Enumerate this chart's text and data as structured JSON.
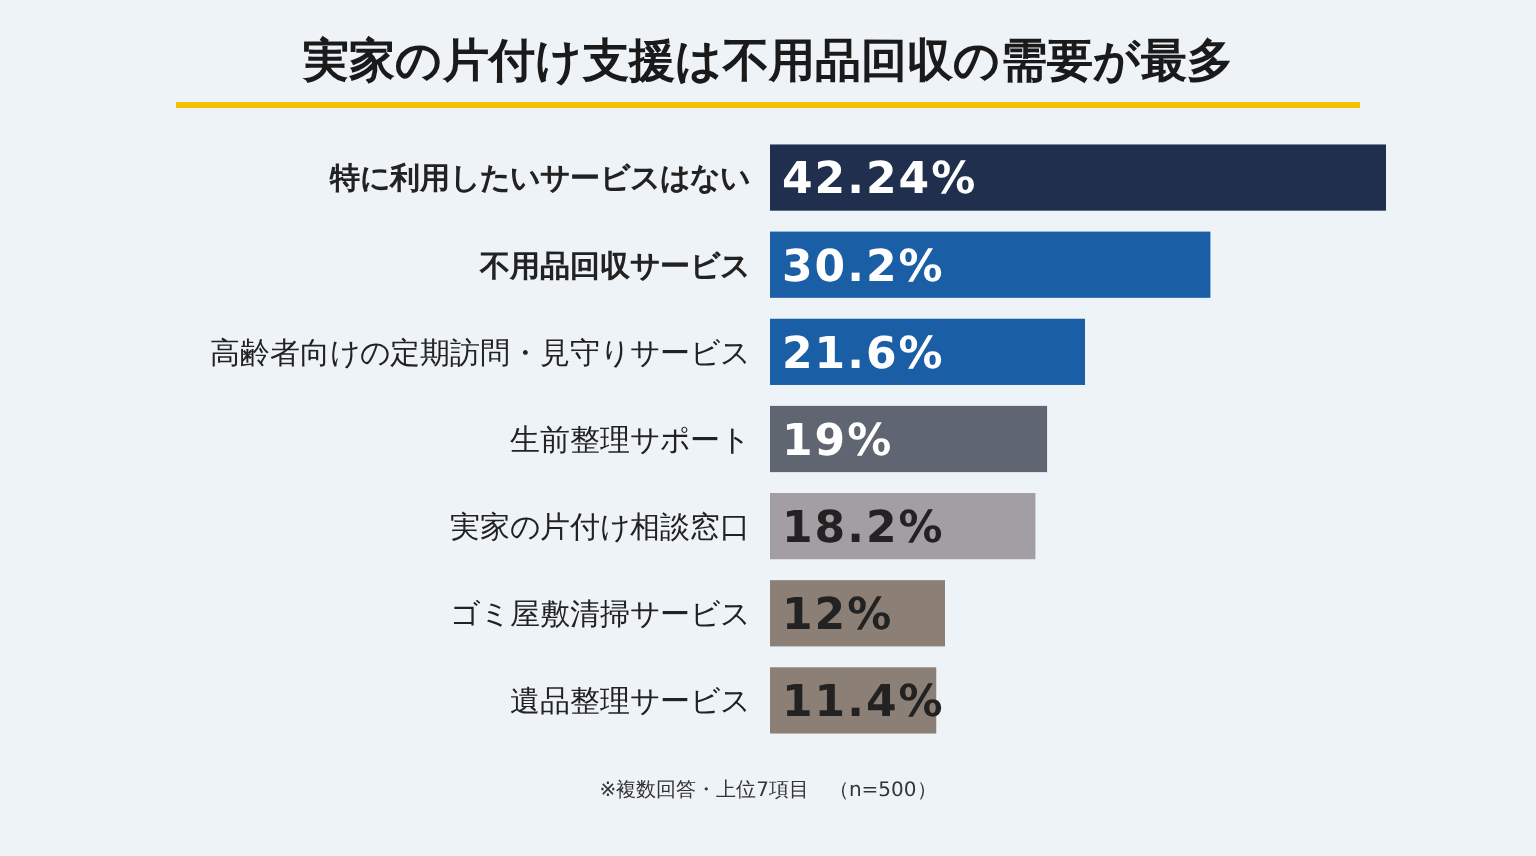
{
  "chart_data": {
    "type": "bar",
    "orientation": "horizontal",
    "title": "実家の片付け支援は不用品回収の需要が最多",
    "categories": [
      "特に利用したいサービスはない",
      "不用品回収サービス",
      "高齢者向けの定期訪問・見守りサービス",
      "生前整理サポート",
      "実家の片付け相談窓口",
      "ゴミ屋敷清掃サービス",
      "遺品整理サービス"
    ],
    "values": [
      42.24,
      30.2,
      21.6,
      19,
      18.2,
      12,
      11.4
    ],
    "value_labels": [
      "42.24%",
      "30.2%",
      "21.6%",
      "19%",
      "18.2%",
      "12%",
      "11.4%"
    ],
    "colors": [
      "#1f2f4d",
      "#1a5fa6",
      "#1a5fa6",
      "#5f6671",
      "#a39ea3",
      "#8c7f75",
      "#8c7f75"
    ],
    "annotations": [
      "※複数回答・上位7項目　（n=500）"
    ]
  }
}
